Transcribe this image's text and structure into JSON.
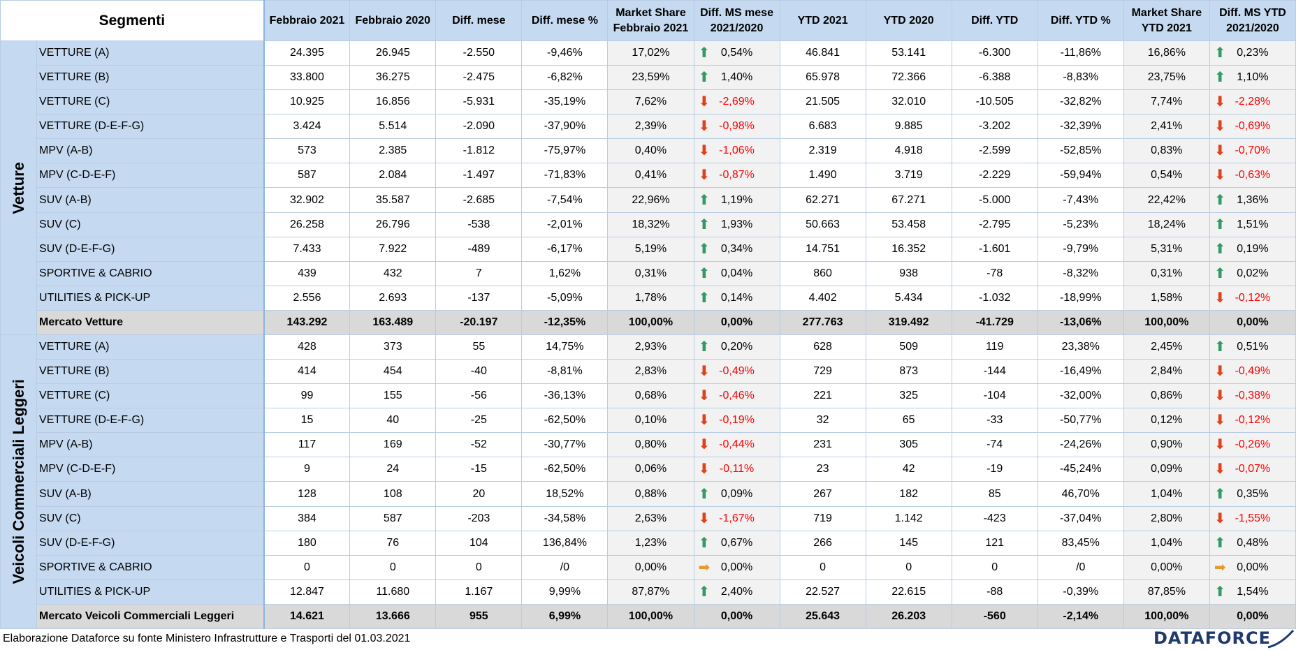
{
  "header": {
    "segmenti": "Segmenti",
    "columns": [
      "Febbraio 2021",
      "Febbraio 2020",
      "Diff. mese",
      "Diff. mese %",
      "Market Share Febbraio 2021",
      "Diff. MS mese 2021/2020",
      "YTD 2021",
      "YTD 2020",
      "Diff. YTD",
      "Diff. YTD %",
      "Market Share YTD 2021",
      "Diff. MS YTD 2021/2020"
    ]
  },
  "groups": [
    {
      "label": "Vetture",
      "rows": [
        {
          "segment": "VETTURE (A)",
          "feb21": "24.395",
          "feb20": "26.945",
          "diff": "-2.550",
          "diffpct": "-9,46%",
          "ms": "17,02%",
          "ms_dir": "up",
          "ms_diff": "0,54%",
          "ytd21": "46.841",
          "ytd20": "53.141",
          "ydiff": "-6.300",
          "ydiffpct": "-11,86%",
          "yms": "16,86%",
          "yms_dir": "up",
          "yms_diff": "0,23%"
        },
        {
          "segment": "VETTURE (B)",
          "feb21": "33.800",
          "feb20": "36.275",
          "diff": "-2.475",
          "diffpct": "-6,82%",
          "ms": "23,59%",
          "ms_dir": "up",
          "ms_diff": "1,40%",
          "ytd21": "65.978",
          "ytd20": "72.366",
          "ydiff": "-6.388",
          "ydiffpct": "-8,83%",
          "yms": "23,75%",
          "yms_dir": "up",
          "yms_diff": "1,10%"
        },
        {
          "segment": "VETTURE (C)",
          "feb21": "10.925",
          "feb20": "16.856",
          "diff": "-5.931",
          "diffpct": "-35,19%",
          "ms": "7,62%",
          "ms_dir": "down",
          "ms_diff": "-2,69%",
          "ytd21": "21.505",
          "ytd20": "32.010",
          "ydiff": "-10.505",
          "ydiffpct": "-32,82%",
          "yms": "7,74%",
          "yms_dir": "down",
          "yms_diff": "-2,28%"
        },
        {
          "segment": "VETTURE (D-E-F-G)",
          "feb21": "3.424",
          "feb20": "5.514",
          "diff": "-2.090",
          "diffpct": "-37,90%",
          "ms": "2,39%",
          "ms_dir": "down",
          "ms_diff": "-0,98%",
          "ytd21": "6.683",
          "ytd20": "9.885",
          "ydiff": "-3.202",
          "ydiffpct": "-32,39%",
          "yms": "2,41%",
          "yms_dir": "down",
          "yms_diff": "-0,69%"
        },
        {
          "segment": "MPV (A-B)",
          "feb21": "573",
          "feb20": "2.385",
          "diff": "-1.812",
          "diffpct": "-75,97%",
          "ms": "0,40%",
          "ms_dir": "down",
          "ms_diff": "-1,06%",
          "ytd21": "2.319",
          "ytd20": "4.918",
          "ydiff": "-2.599",
          "ydiffpct": "-52,85%",
          "yms": "0,83%",
          "yms_dir": "down",
          "yms_diff": "-0,70%"
        },
        {
          "segment": "MPV (C-D-E-F)",
          "feb21": "587",
          "feb20": "2.084",
          "diff": "-1.497",
          "diffpct": "-71,83%",
          "ms": "0,41%",
          "ms_dir": "down",
          "ms_diff": "-0,87%",
          "ytd21": "1.490",
          "ytd20": "3.719",
          "ydiff": "-2.229",
          "ydiffpct": "-59,94%",
          "yms": "0,54%",
          "yms_dir": "down",
          "yms_diff": "-0,63%"
        },
        {
          "segment": "SUV (A-B)",
          "feb21": "32.902",
          "feb20": "35.587",
          "diff": "-2.685",
          "diffpct": "-7,54%",
          "ms": "22,96%",
          "ms_dir": "up",
          "ms_diff": "1,19%",
          "ytd21": "62.271",
          "ytd20": "67.271",
          "ydiff": "-5.000",
          "ydiffpct": "-7,43%",
          "yms": "22,42%",
          "yms_dir": "up",
          "yms_diff": "1,36%"
        },
        {
          "segment": "SUV (C)",
          "feb21": "26.258",
          "feb20": "26.796",
          "diff": "-538",
          "diffpct": "-2,01%",
          "ms": "18,32%",
          "ms_dir": "up",
          "ms_diff": "1,93%",
          "ytd21": "50.663",
          "ytd20": "53.458",
          "ydiff": "-2.795",
          "ydiffpct": "-5,23%",
          "yms": "18,24%",
          "yms_dir": "up",
          "yms_diff": "1,51%"
        },
        {
          "segment": "SUV (D-E-F-G)",
          "feb21": "7.433",
          "feb20": "7.922",
          "diff": "-489",
          "diffpct": "-6,17%",
          "ms": "5,19%",
          "ms_dir": "up",
          "ms_diff": "0,34%",
          "ytd21": "14.751",
          "ytd20": "16.352",
          "ydiff": "-1.601",
          "ydiffpct": "-9,79%",
          "yms": "5,31%",
          "yms_dir": "up",
          "yms_diff": "0,19%"
        },
        {
          "segment": "SPORTIVE & CABRIO",
          "feb21": "439",
          "feb20": "432",
          "diff": "7",
          "diffpct": "1,62%",
          "ms": "0,31%",
          "ms_dir": "up",
          "ms_diff": "0,04%",
          "ytd21": "860",
          "ytd20": "938",
          "ydiff": "-78",
          "ydiffpct": "-8,32%",
          "yms": "0,31%",
          "yms_dir": "up",
          "yms_diff": "0,02%"
        },
        {
          "segment": "UTILITIES & PICK-UP",
          "feb21": "2.556",
          "feb20": "2.693",
          "diff": "-137",
          "diffpct": "-5,09%",
          "ms": "1,78%",
          "ms_dir": "up",
          "ms_diff": "0,14%",
          "ytd21": "4.402",
          "ytd20": "5.434",
          "ydiff": "-1.032",
          "ydiffpct": "-18,99%",
          "yms": "1,58%",
          "yms_dir": "down",
          "yms_diff": "-0,12%"
        }
      ],
      "total": {
        "segment": "Mercato Vetture",
        "feb21": "143.292",
        "feb20": "163.489",
        "diff": "-20.197",
        "diffpct": "-12,35%",
        "ms": "100,00%",
        "ms_diff": "0,00%",
        "ytd21": "277.763",
        "ytd20": "319.492",
        "ydiff": "-41.729",
        "ydiffpct": "-13,06%",
        "yms": "100,00%",
        "yms_diff": "0,00%"
      }
    },
    {
      "label": "Veicoli Commerciali Leggeri",
      "rows": [
        {
          "segment": "VETTURE (A)",
          "feb21": "428",
          "feb20": "373",
          "diff": "55",
          "diffpct": "14,75%",
          "ms": "2,93%",
          "ms_dir": "up",
          "ms_diff": "0,20%",
          "ytd21": "628",
          "ytd20": "509",
          "ydiff": "119",
          "ydiffpct": "23,38%",
          "yms": "2,45%",
          "yms_dir": "up",
          "yms_diff": "0,51%"
        },
        {
          "segment": "VETTURE (B)",
          "feb21": "414",
          "feb20": "454",
          "diff": "-40",
          "diffpct": "-8,81%",
          "ms": "2,83%",
          "ms_dir": "down",
          "ms_diff": "-0,49%",
          "ytd21": "729",
          "ytd20": "873",
          "ydiff": "-144",
          "ydiffpct": "-16,49%",
          "yms": "2,84%",
          "yms_dir": "down",
          "yms_diff": "-0,49%"
        },
        {
          "segment": "VETTURE (C)",
          "feb21": "99",
          "feb20": "155",
          "diff": "-56",
          "diffpct": "-36,13%",
          "ms": "0,68%",
          "ms_dir": "down",
          "ms_diff": "-0,46%",
          "ytd21": "221",
          "ytd20": "325",
          "ydiff": "-104",
          "ydiffpct": "-32,00%",
          "yms": "0,86%",
          "yms_dir": "down",
          "yms_diff": "-0,38%"
        },
        {
          "segment": "VETTURE (D-E-F-G)",
          "feb21": "15",
          "feb20": "40",
          "diff": "-25",
          "diffpct": "-62,50%",
          "ms": "0,10%",
          "ms_dir": "down",
          "ms_diff": "-0,19%",
          "ytd21": "32",
          "ytd20": "65",
          "ydiff": "-33",
          "ydiffpct": "-50,77%",
          "yms": "0,12%",
          "yms_dir": "down",
          "yms_diff": "-0,12%"
        },
        {
          "segment": "MPV (A-B)",
          "feb21": "117",
          "feb20": "169",
          "diff": "-52",
          "diffpct": "-30,77%",
          "ms": "0,80%",
          "ms_dir": "down",
          "ms_diff": "-0,44%",
          "ytd21": "231",
          "ytd20": "305",
          "ydiff": "-74",
          "ydiffpct": "-24,26%",
          "yms": "0,90%",
          "yms_dir": "down",
          "yms_diff": "-0,26%"
        },
        {
          "segment": "MPV (C-D-E-F)",
          "feb21": "9",
          "feb20": "24",
          "diff": "-15",
          "diffpct": "-62,50%",
          "ms": "0,06%",
          "ms_dir": "down",
          "ms_diff": "-0,11%",
          "ytd21": "23",
          "ytd20": "42",
          "ydiff": "-19",
          "ydiffpct": "-45,24%",
          "yms": "0,09%",
          "yms_dir": "down",
          "yms_diff": "-0,07%"
        },
        {
          "segment": "SUV (A-B)",
          "feb21": "128",
          "feb20": "108",
          "diff": "20",
          "diffpct": "18,52%",
          "ms": "0,88%",
          "ms_dir": "up",
          "ms_diff": "0,09%",
          "ytd21": "267",
          "ytd20": "182",
          "ydiff": "85",
          "ydiffpct": "46,70%",
          "yms": "1,04%",
          "yms_dir": "up",
          "yms_diff": "0,35%"
        },
        {
          "segment": "SUV (C)",
          "feb21": "384",
          "feb20": "587",
          "diff": "-203",
          "diffpct": "-34,58%",
          "ms": "2,63%",
          "ms_dir": "down",
          "ms_diff": "-1,67%",
          "ytd21": "719",
          "ytd20": "1.142",
          "ydiff": "-423",
          "ydiffpct": "-37,04%",
          "yms": "2,80%",
          "yms_dir": "down",
          "yms_diff": "-1,55%"
        },
        {
          "segment": "SUV (D-E-F-G)",
          "feb21": "180",
          "feb20": "76",
          "diff": "104",
          "diffpct": "136,84%",
          "ms": "1,23%",
          "ms_dir": "up",
          "ms_diff": "0,67%",
          "ytd21": "266",
          "ytd20": "145",
          "ydiff": "121",
          "ydiffpct": "83,45%",
          "yms": "1,04%",
          "yms_dir": "up",
          "yms_diff": "0,48%"
        },
        {
          "segment": "SPORTIVE & CABRIO",
          "feb21": "0",
          "feb20": "0",
          "diff": "0",
          "diffpct": "/0",
          "ms": "0,00%",
          "ms_dir": "flat",
          "ms_diff": "0,00%",
          "ytd21": "0",
          "ytd20": "0",
          "ydiff": "0",
          "ydiffpct": "/0",
          "yms": "0,00%",
          "yms_dir": "flat",
          "yms_diff": "0,00%"
        },
        {
          "segment": "UTILITIES & PICK-UP",
          "feb21": "12.847",
          "feb20": "11.680",
          "diff": "1.167",
          "diffpct": "9,99%",
          "ms": "87,87%",
          "ms_dir": "up",
          "ms_diff": "2,40%",
          "ytd21": "22.527",
          "ytd20": "22.615",
          "ydiff": "-88",
          "ydiffpct": "-0,39%",
          "yms": "87,85%",
          "yms_dir": "up",
          "yms_diff": "1,54%"
        }
      ],
      "total": {
        "segment": "Mercato Veicoli Commerciali Leggeri",
        "feb21": "14.621",
        "feb20": "13.666",
        "diff": "955",
        "diffpct": "6,99%",
        "ms": "100,00%",
        "ms_diff": "0,00%",
        "ytd21": "25.643",
        "ytd20": "26.203",
        "ydiff": "-560",
        "ydiffpct": "-2,14%",
        "yms": "100,00%",
        "yms_diff": "0,00%"
      }
    }
  ],
  "footer": {
    "note": "Elaborazione Dataforce su fonte Ministero Infrastrutture e Trasporti del 01.03.2021",
    "logo": "DATAFORCE"
  },
  "colors": {
    "header_bg": "#c5d9f1",
    "negative": "#ff0000",
    "arrow_up": "#339966",
    "arrow_down": "#e0401a",
    "arrow_flat": "#e69a2e",
    "total_bg": "#d9d9d9"
  },
  "icons": {
    "up": "arrow-up-icon",
    "down": "arrow-down-icon",
    "flat": "arrow-right-icon"
  }
}
